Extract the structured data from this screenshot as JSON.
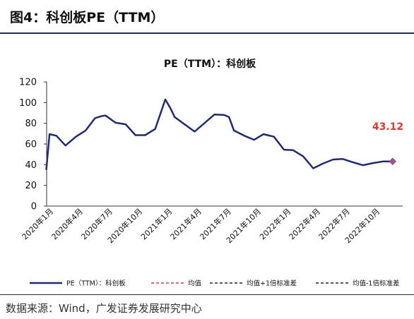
{
  "figure": {
    "label": "图4：科创板PE（TTM）",
    "source": "数据来源：Wind，广发证券发展研究中心"
  },
  "chart_data": {
    "type": "line",
    "title": "PE（TTM）：科创板",
    "xlabel": "",
    "ylabel": "",
    "ylim": [
      0,
      120
    ],
    "yticks": [
      0,
      20,
      40,
      60,
      80,
      100,
      120
    ],
    "xtick_labels": [
      "2020年1月",
      "2020年4月",
      "2020年7月",
      "2020年10月",
      "2021年1月",
      "2021年4月",
      "2021年7月",
      "2021年10月",
      "2022年1月",
      "2022年4月",
      "2022年7月",
      "2022年10月"
    ],
    "grid": false,
    "legend_position": "bottom",
    "last_value_label": "43.12",
    "series": [
      {
        "name": "PE（TTM）：科创板",
        "color": "#1f2a7a",
        "style": "solid",
        "x": [
          "2019-12-31",
          "2020-01-10",
          "2020-01-31",
          "2020-02-28",
          "2020-03-31",
          "2020-04-30",
          "2020-05-29",
          "2020-06-19",
          "2020-06-30",
          "2020-07-31",
          "2020-08-31",
          "2020-09-30",
          "2020-10-30",
          "2020-11-30",
          "2020-12-31",
          "2021-01-15",
          "2021-01-29",
          "2021-02-26",
          "2021-03-31",
          "2021-04-30",
          "2021-05-31",
          "2021-06-30",
          "2021-07-15",
          "2021-07-30",
          "2021-08-31",
          "2021-09-30",
          "2021-10-29",
          "2021-11-30",
          "2021-12-31",
          "2022-01-28",
          "2022-02-28",
          "2022-03-31",
          "2022-04-29",
          "2022-05-31",
          "2022-06-30",
          "2022-07-29",
          "2022-08-31",
          "2022-09-30",
          "2022-10-31",
          "2022-11-30"
        ],
        "values": [
          35,
          69.5,
          68,
          58.5,
          67,
          73,
          85,
          87,
          87.5,
          80.5,
          79,
          68.5,
          68.5,
          74.5,
          103,
          95,
          86,
          79.5,
          72,
          80,
          88.5,
          88,
          86,
          73,
          68,
          64,
          69.5,
          67,
          54.5,
          54,
          48,
          36.5,
          41,
          45,
          45.5,
          42.5,
          39.5,
          41.5,
          43.12,
          43.12
        ]
      },
      {
        "name": "均值",
        "color": "#e8352d",
        "style": "dashed"
      },
      {
        "name": "均值+1倍标准差",
        "color": "#222222",
        "style": "dashed"
      },
      {
        "name": "均值-1倍标准差",
        "color": "#222222",
        "style": "dashed"
      }
    ]
  }
}
